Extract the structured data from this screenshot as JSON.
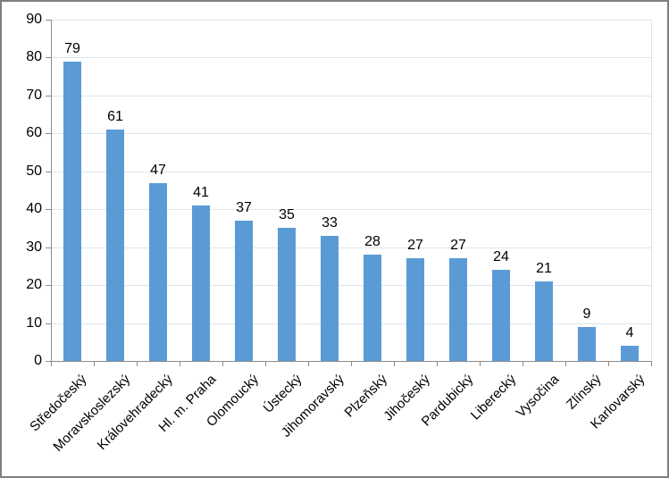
{
  "chart_data": {
    "type": "bar",
    "title": "",
    "xlabel": "",
    "ylabel": "",
    "categories": [
      "Středočeský",
      "Moravskoslezský",
      "Královehradecký",
      "Hl. m. Praha",
      "Olomoucký",
      "Ústecký",
      "Jihomoravský",
      "Plzeňský",
      "Jihočeský",
      "Pardubický",
      "Liberecký",
      "Vysočina",
      "Zlínský",
      "Karlovarský"
    ],
    "values": [
      79,
      61,
      47,
      41,
      37,
      35,
      33,
      28,
      27,
      27,
      24,
      21,
      9,
      4
    ],
    "ylim": [
      0,
      90
    ],
    "yticks": [
      0,
      10,
      20,
      30,
      40,
      50,
      60,
      70,
      80,
      90
    ],
    "grid": true,
    "legend": "none",
    "data_labels": true,
    "x_label_rotation_deg": 45,
    "colors": {
      "bar": "#5B9BD5",
      "gridline": "#DCE5ED",
      "axis": "#8C8C8C",
      "frame_border": "#7F7F7F",
      "text": "#000000",
      "background": "#FFFFFF"
    }
  }
}
